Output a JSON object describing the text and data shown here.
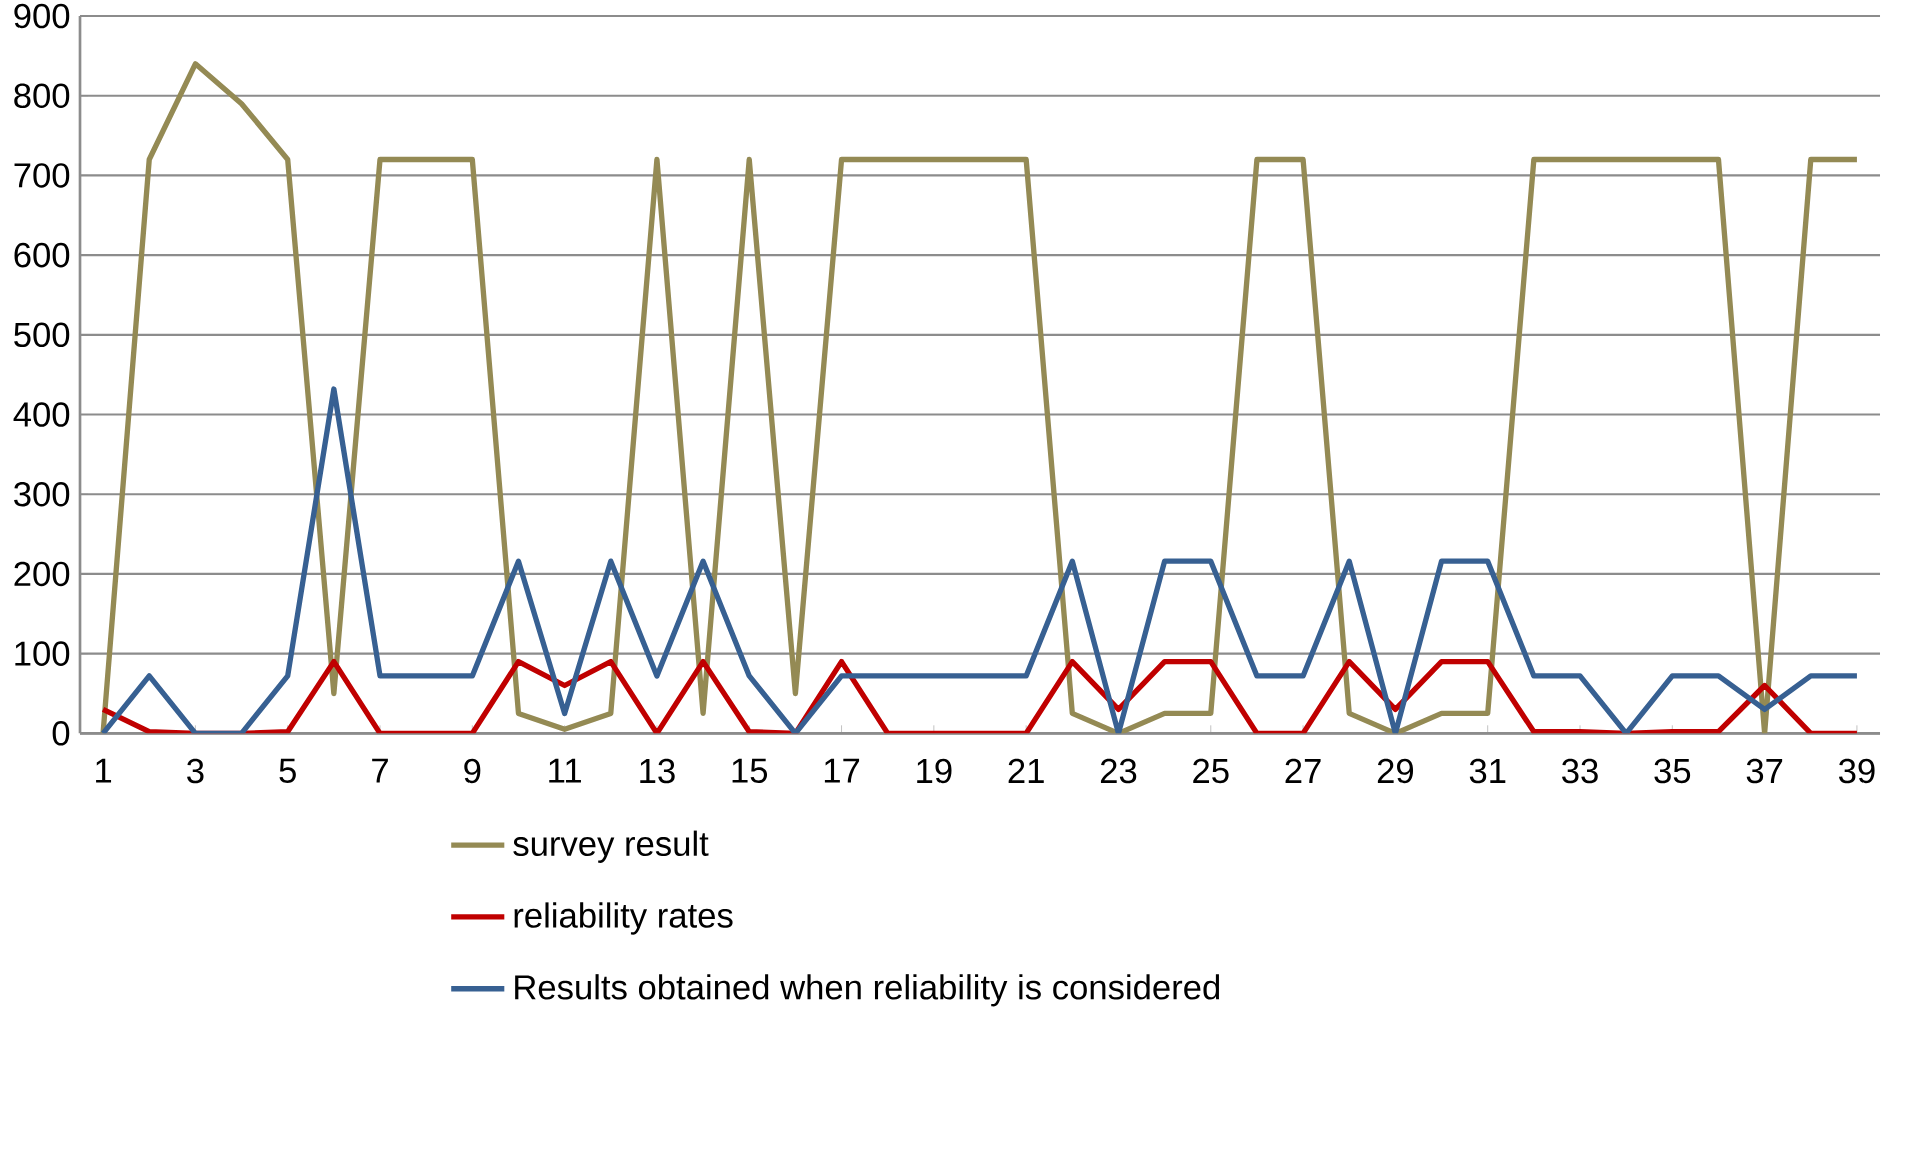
{
  "chart_data": {
    "type": "line",
    "x": [
      1,
      2,
      3,
      4,
      5,
      6,
      7,
      8,
      9,
      10,
      11,
      12,
      13,
      14,
      15,
      16,
      17,
      18,
      19,
      20,
      21,
      22,
      23,
      24,
      25,
      26,
      27,
      28,
      29,
      30,
      31,
      32,
      33,
      34,
      35,
      36,
      37,
      38,
      39
    ],
    "series": [
      {
        "name": "survey result",
        "color": "#948a54",
        "values": [
          0,
          720,
          840,
          790,
          720,
          50,
          720,
          720,
          720,
          25,
          5,
          25,
          720,
          25,
          720,
          50,
          720,
          720,
          720,
          720,
          720,
          25,
          0,
          25,
          25,
          720,
          720,
          25,
          0,
          25,
          25,
          720,
          720,
          720,
          720,
          720,
          0,
          720,
          720
        ]
      },
      {
        "name": "reliability rates",
        "color": "#c00000",
        "values": [
          30,
          2,
          0,
          0,
          2,
          90,
          0,
          0,
          0,
          90,
          60,
          90,
          0,
          90,
          2,
          0,
          90,
          0,
          0,
          0,
          0,
          90,
          30,
          90,
          90,
          0,
          0,
          90,
          30,
          90,
          90,
          2,
          2,
          0,
          2,
          2,
          60,
          0,
          0
        ]
      },
      {
        "name": "Results obtained when reliability is considered",
        "color": "#376092",
        "values": [
          0,
          72,
          0,
          0,
          72,
          432,
          72,
          72,
          72,
          216,
          25,
          216,
          72,
          216,
          72,
          0,
          72,
          72,
          72,
          72,
          72,
          216,
          0,
          216,
          216,
          72,
          72,
          216,
          0,
          216,
          216,
          72,
          72,
          0,
          72,
          72,
          30,
          72,
          72
        ]
      }
    ],
    "xlim": [
      0.5,
      39.5
    ],
    "xticks": [
      1,
      3,
      5,
      7,
      9,
      11,
      13,
      15,
      17,
      19,
      21,
      23,
      25,
      27,
      29,
      31,
      33,
      35,
      37,
      39
    ],
    "ylim": [
      0,
      900
    ],
    "yticks": [
      0,
      100,
      200,
      300,
      400,
      500,
      600,
      700,
      800,
      900
    ],
    "grid": "y",
    "legend": "bottom",
    "marker": "none",
    "line_style": "solid"
  }
}
